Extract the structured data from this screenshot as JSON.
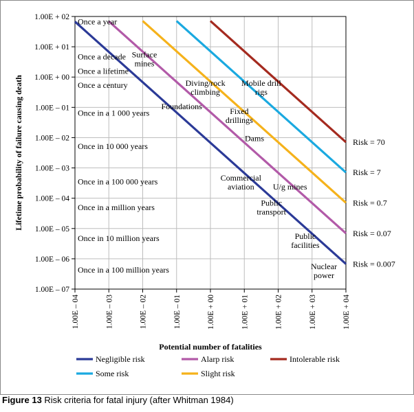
{
  "chart_data": {
    "type": "line",
    "xscale": "log",
    "yscale": "log",
    "xlim_exp": [
      -4,
      4
    ],
    "ylim_exp": [
      -7,
      2
    ],
    "xlabel": "Potential number of fatalities",
    "ylabel": "Lifetime probability of failure causing death",
    "x_ticks": [
      "1.00E – 04",
      "1.00E – 03",
      "1.00E – 02",
      "1.00E – 01",
      "1.00E + 00",
      "1.00E + 01",
      "1.00E + 02",
      "1.00E + 03",
      "1.00E + 04"
    ],
    "y_ticks": [
      "1.00E + 02",
      "1.00E + 01",
      "1.00E + 00",
      "1.00E – 01",
      "1.00E – 02",
      "1.00E – 03",
      "1.00E – 04",
      "1.00E – 05",
      "1.00E – 06",
      "1.00E – 07"
    ],
    "series": [
      {
        "name": "Negligible risk",
        "color": "#2b3a97",
        "x_exp": [
          -4,
          4
        ],
        "y_exp": [
          1.83,
          -6.17
        ],
        "end_label": "Risk = 0.007"
      },
      {
        "name": "Alarp risk",
        "color": "#b25aa8",
        "x_exp": [
          -3,
          4
        ],
        "y_exp": [
          1.84,
          -5.16
        ],
        "end_label": "Risk = 0.07"
      },
      {
        "name": "Slight risk",
        "color": "#f5b21b",
        "x_exp": [
          -2,
          4
        ],
        "y_exp": [
          1.85,
          -4.15
        ],
        "end_label": "Risk = 0.7"
      },
      {
        "name": "Some risk",
        "color": "#1aa9e0",
        "x_exp": [
          -1,
          4
        ],
        "y_exp": [
          1.85,
          -3.15
        ],
        "end_label": "Risk = 7"
      },
      {
        "name": "Intolerable risk",
        "color": "#a42a1f",
        "x_exp": [
          0,
          4
        ],
        "y_exp": [
          1.85,
          -2.15
        ],
        "end_label": "Risk = 70"
      }
    ],
    "frequency_labels": [
      {
        "text": "Once a year",
        "y_exp": 1.83
      },
      {
        "text": "Once a decade",
        "y_exp": 0.67
      },
      {
        "text": "Once a lifetime",
        "y_exp": 0.2
      },
      {
        "text": "Once a century",
        "y_exp": -0.27
      },
      {
        "text": "Once in a 1 000 years",
        "y_exp": -1.18
      },
      {
        "text": "Once in 10 000 years",
        "y_exp": -2.29
      },
      {
        "text": "Once in a 100 000 years",
        "y_exp": -3.45
      },
      {
        "text": "Once in a million years",
        "y_exp": -4.3
      },
      {
        "text": "Once in 10 million years",
        "y_exp": -5.32
      },
      {
        "text": "Once in a 100 million years",
        "y_exp": -6.36
      }
    ],
    "annotations": [
      {
        "lines": [
          "Surface",
          "mines"
        ],
        "x_exp": -1.95,
        "y_exp": 0.6
      },
      {
        "lines": [
          "Diving/rock",
          "climbing"
        ],
        "x_exp": -0.15,
        "y_exp": -0.35
      },
      {
        "lines": [
          "Foundations"
        ],
        "x_exp": -0.85,
        "y_exp": -0.97
      },
      {
        "lines": [
          "Mobile drill",
          "rigs"
        ],
        "x_exp": 1.5,
        "y_exp": -0.35
      },
      {
        "lines": [
          "Fixed",
          "drillings"
        ],
        "x_exp": 0.85,
        "y_exp": -1.28
      },
      {
        "lines": [
          "Dams"
        ],
        "x_exp": 1.3,
        "y_exp": -2.02
      },
      {
        "lines": [
          "Commercial",
          "aviation"
        ],
        "x_exp": 0.9,
        "y_exp": -3.47
      },
      {
        "lines": [
          "U/g mines"
        ],
        "x_exp": 2.35,
        "y_exp": -3.62
      },
      {
        "lines": [
          "Public",
          "transport"
        ],
        "x_exp": 1.8,
        "y_exp": -4.3
      },
      {
        "lines": [
          "Public",
          "facilities"
        ],
        "x_exp": 2.8,
        "y_exp": -5.4
      },
      {
        "lines": [
          "Nuclear",
          "power"
        ],
        "x_exp": 3.35,
        "y_exp": -6.4
      }
    ],
    "legend_position": "bottom"
  },
  "caption": {
    "label": "Figure 13",
    "text": " Risk criteria for fatal injury (after Whitman 1984)"
  }
}
